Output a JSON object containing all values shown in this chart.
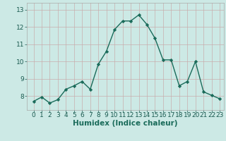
{
  "x": [
    0,
    1,
    2,
    3,
    4,
    5,
    6,
    7,
    8,
    9,
    10,
    11,
    12,
    13,
    14,
    15,
    16,
    17,
    18,
    19,
    20,
    21,
    22,
    23
  ],
  "y": [
    7.7,
    7.95,
    7.6,
    7.8,
    8.4,
    8.6,
    8.85,
    8.4,
    9.85,
    10.6,
    11.85,
    12.35,
    12.35,
    12.7,
    12.15,
    11.35,
    10.1,
    10.1,
    8.6,
    8.85,
    10.0,
    8.25,
    8.05,
    7.85
  ],
  "line_color": "#1a6b5a",
  "marker": "D",
  "marker_size": 2.2,
  "line_width": 1.0,
  "bg_color": "#cce9e5",
  "grid_color": "#b8d8d4",
  "xlabel": "Humidex (Indice chaleur)",
  "xlabel_fontsize": 7.5,
  "tick_fontsize": 6.5,
  "ylim": [
    7.2,
    13.4
  ],
  "yticks": [
    8,
    9,
    10,
    11,
    12,
    13
  ],
  "xticks": [
    0,
    1,
    2,
    3,
    4,
    5,
    6,
    7,
    8,
    9,
    10,
    11,
    12,
    13,
    14,
    15,
    16,
    17,
    18,
    19,
    20,
    21,
    22,
    23
  ]
}
